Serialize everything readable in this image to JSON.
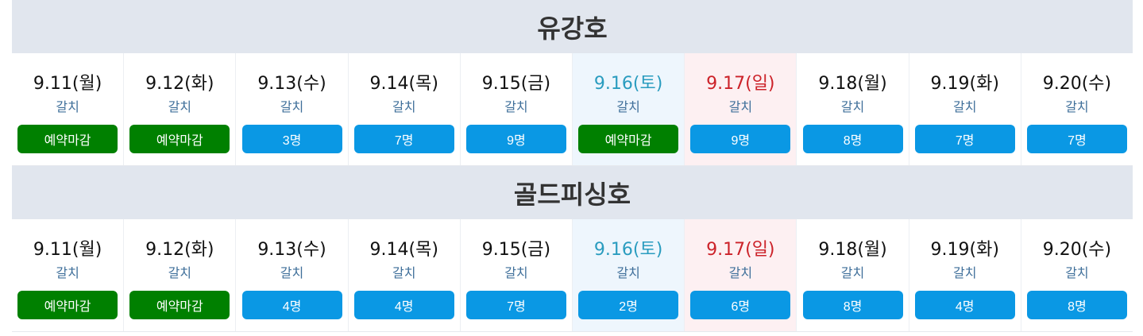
{
  "colors": {
    "closed": "#008000",
    "open": "#0a98e4",
    "saturday": "#2a9cbf",
    "sunday": "#cc2229",
    "header_bg": "#e1e6ee"
  },
  "boats": [
    {
      "name": "유강호",
      "days": [
        {
          "date": "9.11(월)",
          "fish": "갈치",
          "status": "예약마감",
          "type": "closed"
        },
        {
          "date": "9.12(화)",
          "fish": "갈치",
          "status": "예약마감",
          "type": "closed"
        },
        {
          "date": "9.13(수)",
          "fish": "갈치",
          "status": "3명",
          "type": "open"
        },
        {
          "date": "9.14(목)",
          "fish": "갈치",
          "status": "7명",
          "type": "open"
        },
        {
          "date": "9.15(금)",
          "fish": "갈치",
          "status": "9명",
          "type": "open"
        },
        {
          "date": "9.16(토)",
          "fish": "갈치",
          "status": "예약마감",
          "type": "closed",
          "day": "sat"
        },
        {
          "date": "9.17(일)",
          "fish": "갈치",
          "status": "9명",
          "type": "open",
          "day": "sun"
        },
        {
          "date": "9.18(월)",
          "fish": "갈치",
          "status": "8명",
          "type": "open"
        },
        {
          "date": "9.19(화)",
          "fish": "갈치",
          "status": "7명",
          "type": "open"
        },
        {
          "date": "9.20(수)",
          "fish": "갈치",
          "status": "7명",
          "type": "open"
        }
      ]
    },
    {
      "name": "골드피싱호",
      "days": [
        {
          "date": "9.11(월)",
          "fish": "갈치",
          "status": "예약마감",
          "type": "closed"
        },
        {
          "date": "9.12(화)",
          "fish": "갈치",
          "status": "예약마감",
          "type": "closed"
        },
        {
          "date": "9.13(수)",
          "fish": "갈치",
          "status": "4명",
          "type": "open"
        },
        {
          "date": "9.14(목)",
          "fish": "갈치",
          "status": "4명",
          "type": "open"
        },
        {
          "date": "9.15(금)",
          "fish": "갈치",
          "status": "7명",
          "type": "open"
        },
        {
          "date": "9.16(토)",
          "fish": "갈치",
          "status": "2명",
          "type": "open",
          "day": "sat"
        },
        {
          "date": "9.17(일)",
          "fish": "갈치",
          "status": "6명",
          "type": "open",
          "day": "sun"
        },
        {
          "date": "9.18(월)",
          "fish": "갈치",
          "status": "8명",
          "type": "open"
        },
        {
          "date": "9.19(화)",
          "fish": "갈치",
          "status": "4명",
          "type": "open"
        },
        {
          "date": "9.20(수)",
          "fish": "갈치",
          "status": "8명",
          "type": "open"
        }
      ]
    }
  ]
}
